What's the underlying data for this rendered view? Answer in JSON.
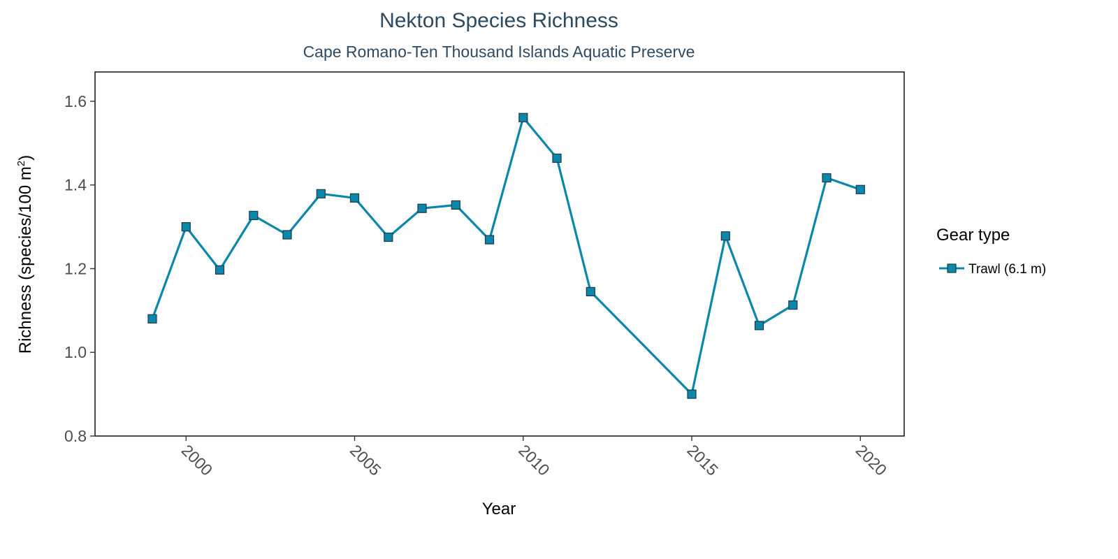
{
  "colors": {
    "series": "#0a87aa",
    "marker_fill": "#0a87aa",
    "marker_stroke": "#1b3a4a",
    "title": "#2c4a63",
    "tick_text": "#4d4d4d",
    "frame": "#000000"
  },
  "chart_data": {
    "type": "line",
    "title": "Nekton Species Richness",
    "subtitle": "Cape Romano-Ten Thousand Islands Aquatic Preserve",
    "xlabel": "Year",
    "ylabel_main": "Richness (species/100 m",
    "ylabel_sup": "2",
    "ylabel_close": ")",
    "xlim": [
      1997.3,
      2021.3
    ],
    "ylim": [
      0.8,
      1.67
    ],
    "x_ticks": [
      2000,
      2005,
      2010,
      2015,
      2020
    ],
    "x_tick_labels": [
      "2000",
      "2005",
      "2010",
      "2015",
      "2020"
    ],
    "y_ticks": [
      0.8,
      1.0,
      1.2,
      1.4,
      1.6
    ],
    "y_tick_labels": [
      "0.8",
      "1.0",
      "1.2",
      "1.4",
      "1.6"
    ],
    "grid": false,
    "legend": {
      "title": "Gear type",
      "position": "right"
    },
    "series": [
      {
        "name": "Trawl (6.1 m)",
        "marker": "square",
        "x": [
          1999,
          2000,
          2001,
          2002,
          2003,
          2004,
          2005,
          2006,
          2007,
          2008,
          2009,
          2010,
          2011,
          2012,
          2015,
          2016,
          2017,
          2018,
          2019,
          2020
        ],
        "y": [
          1.08,
          1.3,
          1.197,
          1.327,
          1.281,
          1.379,
          1.369,
          1.275,
          1.344,
          1.352,
          1.269,
          1.561,
          1.464,
          1.145,
          0.9,
          1.278,
          1.064,
          1.113,
          1.417,
          1.389
        ]
      }
    ]
  }
}
